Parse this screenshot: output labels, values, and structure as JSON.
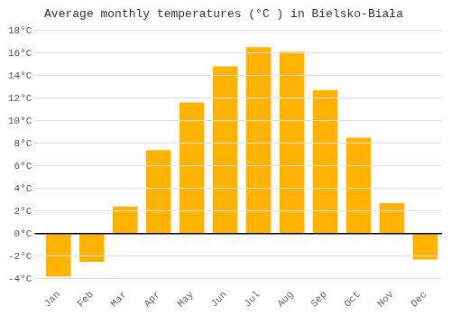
{
  "chart_data": {
    "type": "bar",
    "title": "Average monthly temperatures (°C ) in Bielsko-Biała",
    "categories": [
      "Jan",
      "Feb",
      "Mar",
      "Apr",
      "May",
      "Jun",
      "Jul",
      "Aug",
      "Sep",
      "Oct",
      "Nov",
      "Dec"
    ],
    "values": [
      -3.8,
      -2.5,
      2.4,
      7.4,
      11.6,
      14.8,
      16.5,
      16.1,
      12.7,
      8.5,
      2.7,
      -2.3
    ],
    "color": "#FFB300",
    "ylim": [
      -4,
      18
    ],
    "yticks": [
      {
        "value": -4,
        "label": "-4°C"
      },
      {
        "value": -2,
        "label": "-2°C"
      },
      {
        "value": 0,
        "label": "0°C"
      },
      {
        "value": 2,
        "label": "2°C"
      },
      {
        "value": 4,
        "label": "4°C"
      },
      {
        "value": 6,
        "label": "6°C"
      },
      {
        "value": 8,
        "label": "8°C"
      },
      {
        "value": 10,
        "label": "10°C"
      },
      {
        "value": 12,
        "label": "12°C"
      },
      {
        "value": 14,
        "label": "14°C"
      },
      {
        "value": 16,
        "label": "16°C"
      },
      {
        "value": 18,
        "label": "18°C"
      }
    ],
    "grid": true
  }
}
